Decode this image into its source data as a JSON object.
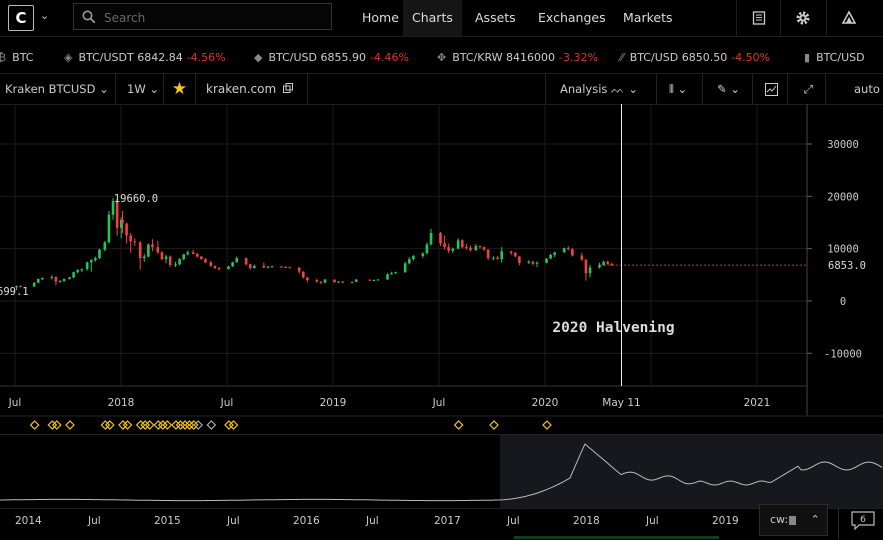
{
  "app": {
    "logo_letter": "C",
    "search": {
      "placeholder": "Search"
    },
    "nav": [
      "Home",
      "Charts",
      "Assets",
      "Exchanges",
      "Markets"
    ],
    "icons": [
      "news-icon",
      "gear-icon",
      "alert-icon"
    ]
  },
  "ticker": [
    {
      "pair": "BTC",
      "price": "",
      "change": ""
    },
    {
      "pair": "BTC/USDT",
      "price": "6842.84",
      "change": "-4.56%"
    },
    {
      "pair": "BTC/USD",
      "price": "6855.90",
      "change": "-4.46%"
    },
    {
      "pair": "BTC/KRW",
      "price": "8416000",
      "change": "-3.32%"
    },
    {
      "pair": "BTC/USD",
      "price": "6850.50",
      "change": "-4.50%"
    },
    {
      "pair": "BTC/USD",
      "price": "",
      "change": ""
    }
  ],
  "toolbar": {
    "market": "Kraken BTCUSD",
    "interval": "1W",
    "link": "kraken.com",
    "analysis": "Analysis",
    "scale": "auto"
  },
  "chart_data": {
    "type": "candlestick",
    "ylim": [
      -15000,
      36000
    ],
    "y_ticks": [
      "30000",
      "20000",
      "10000",
      "0",
      "-10000"
    ],
    "x_ticks": [
      "Jul",
      "2018",
      "Jul",
      "2019",
      "Jul",
      "2020",
      "May 11",
      "2021"
    ],
    "last_price": "6853.0",
    "high_label": "19660.0",
    "left_label": "699.1",
    "annotation": "2020 Halvening",
    "series": [
      {
        "date": "2017-06",
        "open": 2500,
        "high": 2900,
        "low": 2300,
        "close": 2600
      },
      {
        "date": "2017-07",
        "open": 2600,
        "high": 2950,
        "low": 2100,
        "close": 2850
      },
      {
        "date": "2017-07",
        "open": 2850,
        "high": 3000,
        "low": 2600,
        "close": 2750
      },
      {
        "date": "2017-08",
        "open": 2750,
        "high": 3600,
        "low": 2700,
        "close": 3500
      },
      {
        "date": "2017-08",
        "open": 3500,
        "high": 4300,
        "low": 3400,
        "close": 4200
      },
      {
        "date": "2017-08",
        "open": 4200,
        "high": 4500,
        "low": 4000,
        "close": 4400
      },
      {
        "date": "2017-09",
        "open": 4400,
        "high": 4900,
        "low": 4100,
        "close": 4600
      },
      {
        "date": "2017-09",
        "open": 4600,
        "high": 4700,
        "low": 3000,
        "close": 3700
      },
      {
        "date": "2017-09",
        "open": 3700,
        "high": 4000,
        "low": 3500,
        "close": 3800
      },
      {
        "date": "2017-09",
        "open": 3800,
        "high": 4300,
        "low": 3700,
        "close": 4200
      },
      {
        "date": "2017-10",
        "open": 4200,
        "high": 4600,
        "low": 4100,
        "close": 4500
      },
      {
        "date": "2017-10",
        "open": 4500,
        "high": 5600,
        "low": 4400,
        "close": 5500
      },
      {
        "date": "2017-10",
        "open": 5500,
        "high": 6100,
        "low": 5300,
        "close": 5900
      },
      {
        "date": "2017-10",
        "open": 5900,
        "high": 6200,
        "low": 5500,
        "close": 6100
      },
      {
        "date": "2017-11",
        "open": 6100,
        "high": 7500,
        "low": 5800,
        "close": 7400
      },
      {
        "date": "2017-11",
        "open": 7400,
        "high": 8000,
        "low": 5600,
        "close": 7800
      },
      {
        "date": "2017-11",
        "open": 7800,
        "high": 8500,
        "low": 7500,
        "close": 8200
      },
      {
        "date": "2017-11",
        "open": 8200,
        "high": 10000,
        "low": 8000,
        "close": 9800
      },
      {
        "date": "2017-12",
        "open": 9800,
        "high": 11500,
        "low": 9500,
        "close": 11200
      },
      {
        "date": "2017-12",
        "open": 11200,
        "high": 17200,
        "low": 11000,
        "close": 16500
      },
      {
        "date": "2017-12",
        "open": 16500,
        "high": 19660,
        "low": 15500,
        "close": 19100
      },
      {
        "date": "2017-12",
        "open": 19100,
        "high": 19500,
        "low": 12500,
        "close": 14000
      },
      {
        "date": "2017-12",
        "open": 14000,
        "high": 16000,
        "low": 12000,
        "close": 15500
      },
      {
        "date": "2018-01",
        "open": 15500,
        "high": 17200,
        "low": 13000,
        "close": 14800
      },
      {
        "date": "2018-01",
        "open": 14800,
        "high": 15000,
        "low": 11000,
        "close": 12500
      },
      {
        "date": "2018-01",
        "open": 12500,
        "high": 13000,
        "low": 9200,
        "close": 11400
      },
      {
        "date": "2018-01",
        "open": 11400,
        "high": 12000,
        "low": 10500,
        "close": 11200
      },
      {
        "date": "2018-02",
        "open": 11200,
        "high": 11500,
        "low": 6000,
        "close": 8200
      },
      {
        "date": "2018-02",
        "open": 8200,
        "high": 9000,
        "low": 7500,
        "close": 8500
      },
      {
        "date": "2018-02",
        "open": 8500,
        "high": 11000,
        "low": 8300,
        "close": 10800
      },
      {
        "date": "2018-02",
        "open": 10800,
        "high": 11800,
        "low": 9500,
        "close": 10300
      },
      {
        "date": "2018-03",
        "open": 10300,
        "high": 11500,
        "low": 9000,
        "close": 9300
      },
      {
        "date": "2018-03",
        "open": 9300,
        "high": 9500,
        "low": 7800,
        "close": 8000
      },
      {
        "date": "2018-03",
        "open": 8000,
        "high": 8800,
        "low": 7200,
        "close": 8500
      },
      {
        "date": "2018-03",
        "open": 8500,
        "high": 8700,
        "low": 6500,
        "close": 6900
      },
      {
        "date": "2018-04",
        "open": 6900,
        "high": 7500,
        "low": 6500,
        "close": 7000
      },
      {
        "date": "2018-04",
        "open": 7000,
        "high": 8200,
        "low": 6800,
        "close": 8000
      },
      {
        "date": "2018-04",
        "open": 8000,
        "high": 9000,
        "low": 7800,
        "close": 8900
      },
      {
        "date": "2018-04",
        "open": 8900,
        "high": 9700,
        "low": 8700,
        "close": 9300
      },
      {
        "date": "2018-05",
        "open": 9300,
        "high": 9800,
        "low": 8900,
        "close": 9000
      },
      {
        "date": "2018-05",
        "open": 9000,
        "high": 9200,
        "low": 8300,
        "close": 8500
      },
      {
        "date": "2018-05",
        "open": 8500,
        "high": 8600,
        "low": 7900,
        "close": 8000
      },
      {
        "date": "2018-05",
        "open": 8000,
        "high": 8200,
        "low": 7200,
        "close": 7400
      },
      {
        "date": "2018-06",
        "open": 7400,
        "high": 7700,
        "low": 6500,
        "close": 6700
      },
      {
        "date": "2018-06",
        "open": 6700,
        "high": 6800,
        "low": 6100,
        "close": 6300
      },
      {
        "date": "2018-06",
        "open": 6300,
        "high": 6500,
        "low": 5800,
        "close": 6100
      },
      {
        "date": "2018-07",
        "open": 6100,
        "high": 6700,
        "low": 6000,
        "close": 6600
      },
      {
        "date": "2018-07",
        "open": 6600,
        "high": 7500,
        "low": 6500,
        "close": 7400
      },
      {
        "date": "2018-07",
        "open": 7400,
        "high": 8500,
        "low": 7300,
        "close": 8200
      },
      {
        "date": "2018-08",
        "open": 8200,
        "high": 8300,
        "low": 6800,
        "close": 7000
      },
      {
        "date": "2018-08",
        "open": 7000,
        "high": 7100,
        "low": 6000,
        "close": 6300
      },
      {
        "date": "2018-08",
        "open": 6300,
        "high": 7000,
        "low": 6200,
        "close": 6700
      },
      {
        "date": "2018-09",
        "open": 6700,
        "high": 7400,
        "low": 6300,
        "close": 6400
      },
      {
        "date": "2018-09",
        "open": 6400,
        "high": 6700,
        "low": 6200,
        "close": 6600
      },
      {
        "date": "2018-09",
        "open": 6600,
        "high": 6800,
        "low": 6400,
        "close": 6600
      },
      {
        "date": "2018-10",
        "open": 6600,
        "high": 6700,
        "low": 6400,
        "close": 6500
      },
      {
        "date": "2018-10",
        "open": 6500,
        "high": 6600,
        "low": 6300,
        "close": 6450
      },
      {
        "date": "2018-10",
        "open": 6450,
        "high": 6550,
        "low": 6300,
        "close": 6350
      },
      {
        "date": "2018-11",
        "open": 6350,
        "high": 6500,
        "low": 5200,
        "close": 5600
      },
      {
        "date": "2018-11",
        "open": 5600,
        "high": 5700,
        "low": 4300,
        "close": 4500
      },
      {
        "date": "2018-11",
        "open": 4500,
        "high": 4600,
        "low": 3600,
        "close": 4000
      },
      {
        "date": "2018-12",
        "open": 4000,
        "high": 4300,
        "low": 3500,
        "close": 3700
      },
      {
        "date": "2018-12",
        "open": 3700,
        "high": 3800,
        "low": 3200,
        "close": 3500
      },
      {
        "date": "2018-12",
        "open": 3500,
        "high": 4200,
        "low": 3400,
        "close": 4100
      },
      {
        "date": "2019-01",
        "open": 4100,
        "high": 4100,
        "low": 3500,
        "close": 3600
      },
      {
        "date": "2019-01",
        "open": 3600,
        "high": 3800,
        "low": 3500,
        "close": 3700
      },
      {
        "date": "2019-01",
        "open": 3700,
        "high": 3800,
        "low": 3400,
        "close": 3500
      },
      {
        "date": "2019-02",
        "open": 3500,
        "high": 3700,
        "low": 3400,
        "close": 3650
      },
      {
        "date": "2019-02",
        "open": 3650,
        "high": 4200,
        "low": 3600,
        "close": 4100
      },
      {
        "date": "2019-03",
        "open": 4100,
        "high": 4100,
        "low": 3800,
        "close": 3900
      },
      {
        "date": "2019-03",
        "open": 3900,
        "high": 4100,
        "low": 3850,
        "close": 4000
      },
      {
        "date": "2019-03",
        "open": 4000,
        "high": 4200,
        "low": 3950,
        "close": 4100
      },
      {
        "date": "2019-04",
        "open": 4100,
        "high": 5300,
        "low": 4050,
        "close": 5100
      },
      {
        "date": "2019-04",
        "open": 5100,
        "high": 5600,
        "low": 5000,
        "close": 5300
      },
      {
        "date": "2019-04",
        "open": 5300,
        "high": 5600,
        "low": 5200,
        "close": 5500
      },
      {
        "date": "2019-05",
        "open": 5500,
        "high": 7500,
        "low": 5400,
        "close": 7200
      },
      {
        "date": "2019-05",
        "open": 7200,
        "high": 8400,
        "low": 7000,
        "close": 8000
      },
      {
        "date": "2019-05",
        "open": 8000,
        "high": 8800,
        "low": 7700,
        "close": 8600
      },
      {
        "date": "2019-06",
        "open": 8600,
        "high": 9300,
        "low": 8200,
        "close": 9100
      },
      {
        "date": "2019-06",
        "open": 9100,
        "high": 11200,
        "low": 9000,
        "close": 10800
      },
      {
        "date": "2019-06",
        "open": 10800,
        "high": 13800,
        "low": 10600,
        "close": 13000
      },
      {
        "date": "2019-07",
        "open": 13000,
        "high": 13200,
        "low": 10500,
        "close": 11000
      },
      {
        "date": "2019-07",
        "open": 11000,
        "high": 12500,
        "low": 9800,
        "close": 10300
      },
      {
        "date": "2019-07",
        "open": 10300,
        "high": 11000,
        "low": 9100,
        "close": 9600
      },
      {
        "date": "2019-07",
        "open": 9600,
        "high": 10200,
        "low": 9200,
        "close": 10000
      },
      {
        "date": "2019-08",
        "open": 10000,
        "high": 12000,
        "low": 9900,
        "close": 11600
      },
      {
        "date": "2019-08",
        "open": 11600,
        "high": 11800,
        "low": 10100,
        "close": 10300
      },
      {
        "date": "2019-08",
        "open": 10300,
        "high": 10900,
        "low": 9800,
        "close": 10200
      },
      {
        "date": "2019-08",
        "open": 10200,
        "high": 10600,
        "low": 9500,
        "close": 9700
      },
      {
        "date": "2019-09",
        "open": 9700,
        "high": 10900,
        "low": 9600,
        "close": 10500
      },
      {
        "date": "2019-09",
        "open": 10500,
        "high": 10600,
        "low": 10000,
        "close": 10300
      },
      {
        "date": "2019-09",
        "open": 10300,
        "high": 10400,
        "low": 9600,
        "close": 9800
      },
      {
        "date": "2019-09",
        "open": 9800,
        "high": 9900,
        "low": 7800,
        "close": 8200
      },
      {
        "date": "2019-10",
        "open": 8200,
        "high": 8500,
        "low": 7800,
        "close": 8300
      },
      {
        "date": "2019-10",
        "open": 8300,
        "high": 8600,
        "low": 7900,
        "close": 8000
      },
      {
        "date": "2019-10",
        "open": 8000,
        "high": 10300,
        "low": 7300,
        "close": 9500
      },
      {
        "date": "2019-11",
        "open": 9500,
        "high": 9600,
        "low": 8800,
        "close": 9200
      },
      {
        "date": "2019-11",
        "open": 9200,
        "high": 9400,
        "low": 8400,
        "close": 8500
      },
      {
        "date": "2019-11",
        "open": 8500,
        "high": 8600,
        "low": 6800,
        "close": 7300
      },
      {
        "date": "2019-12",
        "open": 7300,
        "high": 7800,
        "low": 7100,
        "close": 7500
      },
      {
        "date": "2019-12",
        "open": 7500,
        "high": 7700,
        "low": 6800,
        "close": 7100
      },
      {
        "date": "2019-12",
        "open": 7100,
        "high": 7600,
        "low": 6500,
        "close": 7300
      },
      {
        "date": "2020-01",
        "open": 7300,
        "high": 8200,
        "low": 7200,
        "close": 8100
      },
      {
        "date": "2020-01",
        "open": 8100,
        "high": 9000,
        "low": 8000,
        "close": 8800
      },
      {
        "date": "2020-01",
        "open": 8800,
        "high": 9400,
        "low": 8400,
        "close": 9300
      },
      {
        "date": "2020-02",
        "open": 9300,
        "high": 10200,
        "low": 9200,
        "close": 10100
      },
      {
        "date": "2020-02",
        "open": 10100,
        "high": 10500,
        "low": 9700,
        "close": 9900
      },
      {
        "date": "2020-02",
        "open": 9900,
        "high": 10100,
        "low": 8500,
        "close": 8700
      },
      {
        "date": "2020-03",
        "open": 8700,
        "high": 9200,
        "low": 7600,
        "close": 7900
      },
      {
        "date": "2020-03",
        "open": 7900,
        "high": 8000,
        "low": 3900,
        "close": 5300
      },
      {
        "date": "2020-03",
        "open": 5300,
        "high": 6900,
        "low": 4500,
        "close": 6400
      },
      {
        "date": "2020-04",
        "open": 6400,
        "high": 7300,
        "low": 6200,
        "close": 6900
      },
      {
        "date": "2020-04",
        "open": 6900,
        "high": 7700,
        "low": 6700,
        "close": 7500
      },
      {
        "date": "2020-04",
        "open": 7500,
        "high": 7700,
        "low": 6900,
        "close": 7100
      },
      {
        "date": "2020-04",
        "open": 7100,
        "high": 7300,
        "low": 6700,
        "close": 6853
      }
    ]
  },
  "signal_markers": [
    "2017-08",
    "2017-09",
    "2017-09",
    "2017-10",
    "2017-12",
    "2017-12",
    "2018-01",
    "2018-01",
    "2018-02",
    "2018-02",
    "2018-02",
    "2018-03",
    "2018-03",
    "2018-03",
    "2018-04",
    "2018-04",
    "2018-04",
    "2018-04",
    "2018-05",
    "2018-05",
    "2018-06",
    "2018-07",
    "2018-07",
    "2019-08",
    "2019-10",
    "2020-01"
  ],
  "overview": {
    "x_ticks": [
      "2014",
      "Jul",
      "2015",
      "Jul",
      "2016",
      "Jul",
      "2017",
      "Jul",
      "2018",
      "Jul",
      "2019"
    ],
    "cw_label": "cw:",
    "message_count": "6"
  },
  "colors": {
    "up": "#22c55e",
    "down": "#ef4444",
    "marker": "#f5c518",
    "accent": "#f5c518"
  }
}
